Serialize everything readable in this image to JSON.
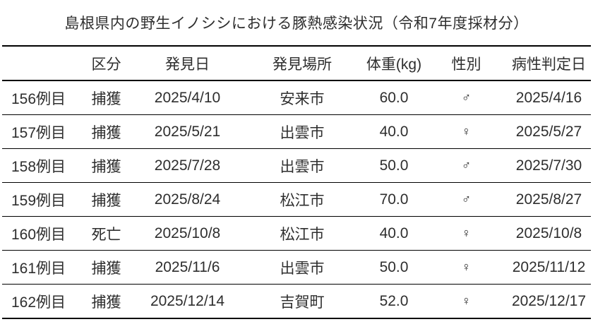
{
  "page": {
    "title": "島根県内の野生イノシシにおける豚熱感染状況（令和7年度採材分）"
  },
  "table": {
    "headers": [
      "",
      "区分",
      "発見日",
      "発見場所",
      "体重(kg)",
      "性別",
      "病性判定日"
    ],
    "column_names": [
      "case-number",
      "category",
      "found-date",
      "found-location",
      "weight-kg",
      "sex",
      "judgement-date"
    ],
    "rows": [
      [
        "156例目",
        "捕獲",
        "2025/4/10",
        "安来市",
        "60.0",
        "♂",
        "2025/4/16"
      ],
      [
        "157例目",
        "捕獲",
        "2025/5/21",
        "出雲市",
        "40.0",
        "♀",
        "2025/5/27"
      ],
      [
        "158例目",
        "捕獲",
        "2025/7/28",
        "出雲市",
        "50.0",
        "♂",
        "2025/7/30"
      ],
      [
        "159例目",
        "捕獲",
        "2025/8/24",
        "松江市",
        "70.0",
        "♂",
        "2025/8/27"
      ],
      [
        "160例目",
        "死亡",
        "2025/10/8",
        "松江市",
        "40.0",
        "♀",
        "2025/10/8"
      ],
      [
        "161例目",
        "捕獲",
        "2025/11/6",
        "出雲市",
        "50.0",
        "♀",
        "2025/11/12"
      ],
      [
        "162例目",
        "捕獲",
        "2025/12/14",
        "吉賀町",
        "52.0",
        "♀",
        "2025/12/17"
      ]
    ]
  },
  "colors": {
    "background": "#ffffff",
    "text": "#2e2e2e",
    "rule": "#000000"
  }
}
